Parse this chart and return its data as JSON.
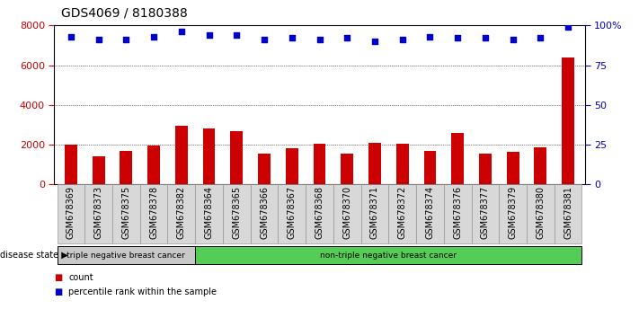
{
  "title": "GDS4069 / 8180388",
  "samples": [
    "GSM678369",
    "GSM678373",
    "GSM678375",
    "GSM678378",
    "GSM678382",
    "GSM678364",
    "GSM678365",
    "GSM678366",
    "GSM678367",
    "GSM678368",
    "GSM678370",
    "GSM678371",
    "GSM678372",
    "GSM678374",
    "GSM678376",
    "GSM678377",
    "GSM678379",
    "GSM678380",
    "GSM678381"
  ],
  "counts": [
    2000,
    1400,
    1700,
    1950,
    2950,
    2800,
    2700,
    1550,
    1800,
    2050,
    1550,
    2100,
    2050,
    1700,
    2600,
    1550,
    1650,
    1850,
    6400
  ],
  "percentile_ranks": [
    93,
    91,
    91,
    93,
    96,
    94,
    94,
    91,
    92,
    91,
    92,
    90,
    91,
    93,
    92,
    92,
    91,
    92,
    99
  ],
  "ylim_left": [
    0,
    8000
  ],
  "ylim_right": [
    0,
    100
  ],
  "yticks_left": [
    0,
    2000,
    4000,
    6000,
    8000
  ],
  "yticks_right": [
    0,
    25,
    50,
    75,
    100
  ],
  "bar_color": "#cc0000",
  "dot_color": "#0000cc",
  "disease_groups": [
    {
      "label": "triple negative breast cancer",
      "start": 0,
      "end": 4,
      "color": "#c8c8c8"
    },
    {
      "label": "non-triple negative breast cancer",
      "start": 5,
      "end": 18,
      "color": "#55cc55"
    }
  ],
  "disease_state_label": "disease state",
  "legend": [
    {
      "label": "count",
      "color": "#cc0000"
    },
    {
      "label": "percentile rank within the sample",
      "color": "#0000cc"
    }
  ],
  "title_fontsize": 10,
  "tick_fontsize": 7,
  "label_fontsize": 7.5
}
